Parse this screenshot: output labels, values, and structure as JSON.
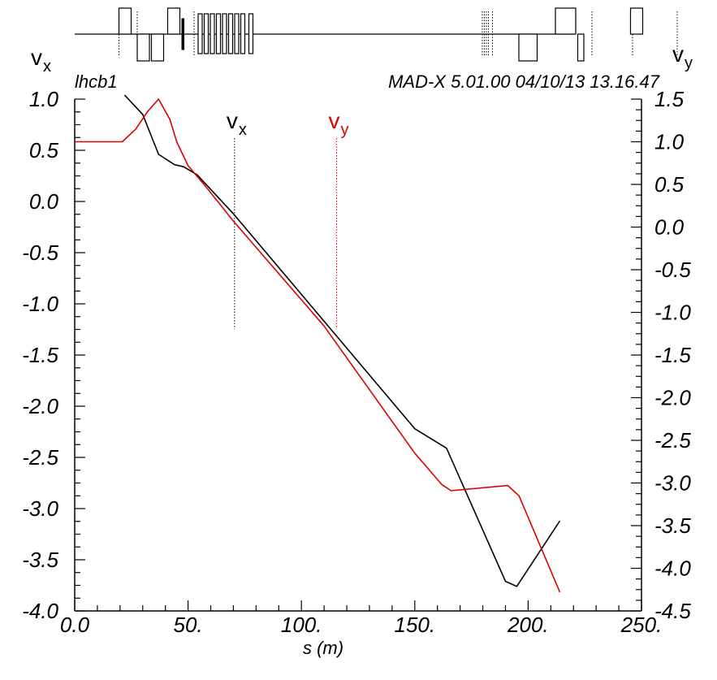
{
  "chart_data": {
    "type": "line",
    "title_left": "lhcb1",
    "title_right": "MAD-X 5.01.00  04/10/13 13.16.47",
    "xlabel": "s (m)",
    "ylabel_left": {
      "base": "v",
      "sub": "x"
    },
    "ylabel_right": {
      "base": "v",
      "sub": "y"
    },
    "xlim": [
      0,
      250
    ],
    "ylim_left": [
      -4.0,
      1.0
    ],
    "ylim_right": [
      -4.5,
      1.5
    ],
    "x_ticks": [
      "0.0",
      "50.",
      "100.",
      "150.",
      "200.",
      "250."
    ],
    "y_ticks_left": [
      "1.0",
      "0.5",
      "0.0",
      "-0.5",
      "-1.0",
      "-1.5",
      "-2.0",
      "-2.5",
      "-3.0",
      "-3.5",
      "-4.0"
    ],
    "y_ticks_right": [
      "1.5",
      "1.0",
      "0.5",
      "0.0",
      "-0.5",
      "-1.0",
      "-1.5",
      "-2.0",
      "-2.5",
      "-3.0",
      "-3.5",
      "-4.0",
      "-4.5"
    ],
    "grid": false,
    "series": [
      {
        "name": "vx",
        "axis": "left",
        "color": "#000000",
        "x": [
          22,
          30,
          37,
          44,
          48,
          54,
          70,
          110,
          150,
          164,
          190,
          195,
          214
        ],
        "y": [
          1.04,
          0.85,
          0.46,
          0.36,
          0.34,
          0.26,
          -0.12,
          -1.17,
          -2.22,
          -2.41,
          -3.71,
          -3.76,
          -3.12
        ]
      },
      {
        "name": "vy",
        "axis": "right",
        "color": "#dd0000",
        "x": [
          0,
          21,
          27,
          32,
          37,
          42,
          45,
          50,
          58,
          70,
          110,
          150,
          162,
          166,
          191,
          196,
          214
        ],
        "y": [
          1.0,
          1.0,
          1.15,
          1.35,
          1.5,
          1.26,
          1.0,
          0.72,
          0.47,
          0.07,
          -1.16,
          -2.65,
          -3.02,
          -3.09,
          -3.03,
          -3.15,
          -4.28
        ]
      }
    ],
    "markers": [
      {
        "label_base": "v",
        "label_sub": "x",
        "x": 70.5,
        "color": "#000000"
      },
      {
        "label_base": "v",
        "label_sub": "y",
        "x": 115.5,
        "color": "#dd0000"
      }
    ],
    "lattice": {
      "upper": [
        [
          23,
          29
        ],
        [
          47,
          53
        ],
        [
          238,
          248
        ],
        [
          275,
          281
        ]
      ],
      "lower": [
        [
          32,
          38
        ],
        [
          39,
          45
        ],
        [
          220,
          229
        ],
        [
          249,
          252
        ]
      ],
      "coils": [
        [
          62,
          64
        ],
        [
          65,
          67
        ],
        [
          68,
          70
        ],
        [
          71,
          73
        ],
        [
          74,
          76
        ],
        [
          77,
          79
        ],
        [
          80,
          82
        ],
        [
          83,
          85
        ],
        [
          87,
          89
        ]
      ],
      "thick_bar": [
        54,
        55
      ],
      "dashed_markers": [
        23,
        32,
        60,
        202,
        203,
        204,
        205,
        207,
        256,
        276,
        298
      ]
    }
  }
}
